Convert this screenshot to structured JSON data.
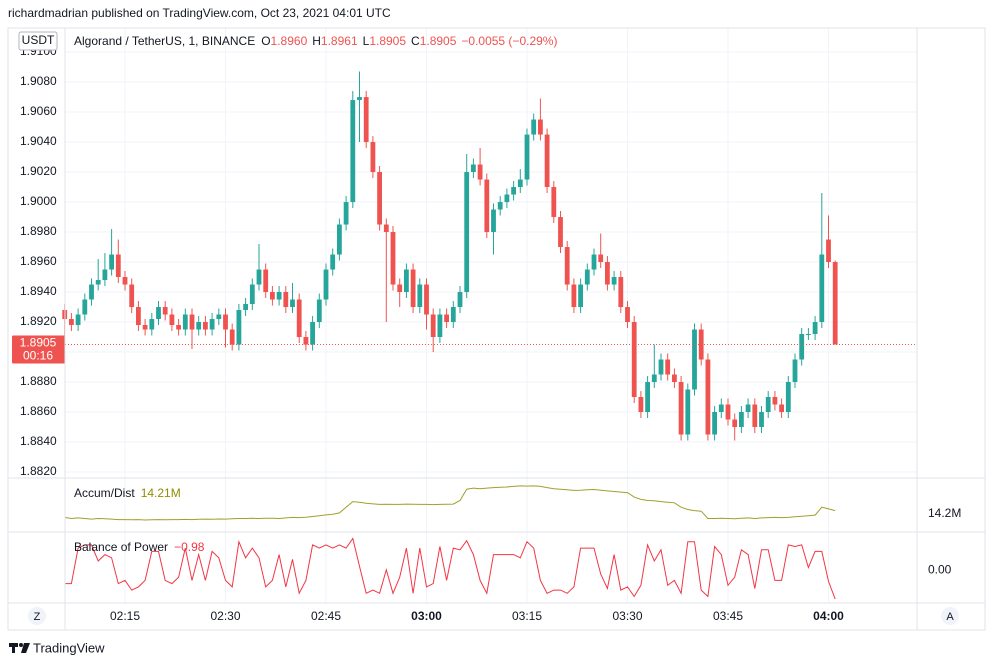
{
  "attribution": "richardmadrian published on TradingView.com, Oct 23, 2021 04:01 UTC",
  "footer": "TradingView",
  "buttons": [
    "Z",
    "A"
  ],
  "chart_data": {
    "type": "candlestick",
    "currency": "USDT",
    "header": {
      "symbol": "Algorand / TetherUS, 1, BINANCE",
      "ohlc_keys": [
        "O",
        "H",
        "L",
        "C"
      ],
      "ohlc_labels": [
        "1.8960",
        "1.8961",
        "1.8905",
        "1.8905"
      ],
      "change": "−0.0055 (−0.29%)"
    },
    "last_price_label": "1.8905",
    "countdown": "00:16",
    "up_color": "#26a69a",
    "down_color": "#ef5350",
    "grid": true,
    "x": [
      "02:06",
      "02:07",
      "02:08",
      "02:09",
      "02:10",
      "02:11",
      "02:12",
      "02:13",
      "02:14",
      "02:15",
      "02:16",
      "02:17",
      "02:18",
      "02:19",
      "02:20",
      "02:21",
      "02:22",
      "02:23",
      "02:24",
      "02:25",
      "02:26",
      "02:27",
      "02:28",
      "02:29",
      "02:30",
      "02:31",
      "02:32",
      "02:33",
      "02:34",
      "02:35",
      "02:36",
      "02:37",
      "02:38",
      "02:39",
      "02:40",
      "02:41",
      "02:42",
      "02:43",
      "02:44",
      "02:45",
      "02:46",
      "02:47",
      "02:48",
      "02:49",
      "02:50",
      "02:51",
      "02:52",
      "02:53",
      "02:54",
      "02:55",
      "02:56",
      "02:57",
      "02:58",
      "02:59",
      "03:00",
      "03:01",
      "03:02",
      "03:03",
      "03:04",
      "03:05",
      "03:06",
      "03:07",
      "03:08",
      "03:09",
      "03:10",
      "03:11",
      "03:12",
      "03:13",
      "03:14",
      "03:15",
      "03:16",
      "03:17",
      "03:18",
      "03:19",
      "03:20",
      "03:21",
      "03:22",
      "03:23",
      "03:24",
      "03:25",
      "03:26",
      "03:27",
      "03:28",
      "03:29",
      "03:30",
      "03:31",
      "03:32",
      "03:33",
      "03:34",
      "03:35",
      "03:36",
      "03:37",
      "03:38",
      "03:39",
      "03:40",
      "03:41",
      "03:42",
      "03:43",
      "03:44",
      "03:45",
      "03:46",
      "03:47",
      "03:48",
      "03:49",
      "03:50",
      "03:51",
      "03:52",
      "03:53",
      "03:54",
      "03:55",
      "03:56",
      "03:57",
      "03:58",
      "03:59",
      "04:00",
      "04:01"
    ],
    "xticks": [
      "02:15",
      "02:30",
      "02:45",
      "03:00",
      "03:15",
      "03:30",
      "03:45",
      "04:00"
    ],
    "bold_xticks": [
      "03:00",
      "04:00"
    ],
    "candles": [
      [
        1.8928,
        1.8932,
        1.89,
        1.8922
      ],
      [
        1.8922,
        1.8926,
        1.8914,
        1.8918
      ],
      [
        1.8918,
        1.8929,
        1.8914,
        1.8925
      ],
      [
        1.8925,
        1.8939,
        1.8921,
        1.8935
      ],
      [
        1.8935,
        1.8949,
        1.8931,
        1.8945
      ],
      [
        1.8945,
        1.8962,
        1.8941,
        1.8948
      ],
      [
        1.8948,
        1.8966,
        1.8944,
        1.8955
      ],
      [
        1.8955,
        1.8982,
        1.8951,
        1.8965
      ],
      [
        1.8965,
        1.8975,
        1.8946,
        1.895
      ],
      [
        1.895,
        1.8954,
        1.8941,
        1.8945
      ],
      [
        1.8945,
        1.8949,
        1.8926,
        1.893
      ],
      [
        1.893,
        1.8934,
        1.8914,
        1.8918
      ],
      [
        1.8918,
        1.8922,
        1.8911,
        1.8915
      ],
      [
        1.8915,
        1.8926,
        1.8911,
        1.8922
      ],
      [
        1.8922,
        1.8934,
        1.8918,
        1.893
      ],
      [
        1.893,
        1.8934,
        1.8921,
        1.8925
      ],
      [
        1.8925,
        1.8929,
        1.8914,
        1.8918
      ],
      [
        1.8918,
        1.8922,
        1.8911,
        1.8915
      ],
      [
        1.8915,
        1.8929,
        1.8911,
        1.8925
      ],
      [
        1.8925,
        1.8929,
        1.8902,
        1.8915
      ],
      [
        1.8915,
        1.8924,
        1.8911,
        1.892
      ],
      [
        1.892,
        1.8924,
        1.8911,
        1.8915
      ],
      [
        1.8915,
        1.8926,
        1.8911,
        1.8922
      ],
      [
        1.8922,
        1.8929,
        1.8918,
        1.8925
      ],
      [
        1.8925,
        1.8929,
        1.8903,
        1.8915
      ],
      [
        1.8915,
        1.8919,
        1.8901,
        1.8905
      ],
      [
        1.8905,
        1.8932,
        1.8901,
        1.8928
      ],
      [
        1.8928,
        1.8936,
        1.8924,
        1.8932
      ],
      [
        1.8932,
        1.8949,
        1.8928,
        1.8945
      ],
      [
        1.8945,
        1.8972,
        1.8941,
        1.8955
      ],
      [
        1.8955,
        1.8959,
        1.8936,
        1.894
      ],
      [
        1.894,
        1.8944,
        1.8931,
        1.8935
      ],
      [
        1.8935,
        1.8944,
        1.8931,
        1.894
      ],
      [
        1.894,
        1.8944,
        1.8926,
        1.893
      ],
      [
        1.893,
        1.8946,
        1.8926,
        1.8935
      ],
      [
        1.8935,
        1.8939,
        1.8906,
        1.891
      ],
      [
        1.891,
        1.8914,
        1.8901,
        1.8905
      ],
      [
        1.8905,
        1.8924,
        1.8901,
        1.892
      ],
      [
        1.892,
        1.8939,
        1.8916,
        1.8935
      ],
      [
        1.8935,
        1.8959,
        1.8931,
        1.8955
      ],
      [
        1.8955,
        1.8969,
        1.8951,
        1.8965
      ],
      [
        1.8965,
        1.8989,
        1.8961,
        1.8985
      ],
      [
        1.8985,
        1.9004,
        1.8981,
        1.9
      ],
      [
        1.9,
        1.9074,
        1.8996,
        1.9068
      ],
      [
        1.9068,
        1.9087,
        1.904,
        1.907
      ],
      [
        1.907,
        1.9074,
        1.9036,
        1.904
      ],
      [
        1.904,
        1.9044,
        1.9016,
        1.902
      ],
      [
        1.902,
        1.9024,
        1.8981,
        1.8985
      ],
      [
        1.8985,
        1.8989,
        1.892,
        1.898
      ],
      [
        1.898,
        1.8984,
        1.8941,
        1.8945
      ],
      [
        1.8945,
        1.8949,
        1.893,
        1.894
      ],
      [
        1.894,
        1.8959,
        1.8936,
        1.8955
      ],
      [
        1.8955,
        1.8959,
        1.8926,
        1.893
      ],
      [
        1.893,
        1.8949,
        1.8926,
        1.8945
      ],
      [
        1.8945,
        1.8949,
        1.8915,
        1.8925
      ],
      [
        1.8925,
        1.8929,
        1.89,
        1.891
      ],
      [
        1.891,
        1.8929,
        1.8906,
        1.8925
      ],
      [
        1.8925,
        1.8929,
        1.8916,
        1.892
      ],
      [
        1.892,
        1.8934,
        1.8916,
        1.893
      ],
      [
        1.893,
        1.8944,
        1.8926,
        1.894
      ],
      [
        1.894,
        1.9032,
        1.8936,
        1.902
      ],
      [
        1.902,
        1.9029,
        1.9016,
        1.9025
      ],
      [
        1.9025,
        1.9036,
        1.9011,
        1.9015
      ],
      [
        1.9015,
        1.9019,
        1.8976,
        1.898
      ],
      [
        1.898,
        1.8999,
        1.8965,
        1.8995
      ],
      [
        1.8995,
        1.9004,
        1.8991,
        1.9
      ],
      [
        1.9,
        1.9009,
        1.8996,
        1.9005
      ],
      [
        1.9005,
        1.9014,
        1.9001,
        1.901
      ],
      [
        1.901,
        1.9022,
        1.9006,
        1.9015
      ],
      [
        1.9015,
        1.9049,
        1.9011,
        1.9045
      ],
      [
        1.9045,
        1.9059,
        1.9041,
        1.9055
      ],
      [
        1.9055,
        1.9069,
        1.9041,
        1.9045
      ],
      [
        1.9045,
        1.9049,
        1.9006,
        1.901
      ],
      [
        1.901,
        1.9014,
        1.8986,
        1.899
      ],
      [
        1.899,
        1.8994,
        1.8966,
        1.897
      ],
      [
        1.897,
        1.8974,
        1.8941,
        1.8945
      ],
      [
        1.8945,
        1.8949,
        1.8926,
        1.893
      ],
      [
        1.893,
        1.8949,
        1.8926,
        1.8945
      ],
      [
        1.8945,
        1.8959,
        1.8941,
        1.8955
      ],
      [
        1.8955,
        1.8969,
        1.8951,
        1.8965
      ],
      [
        1.8965,
        1.8979,
        1.8956,
        1.896
      ],
      [
        1.896,
        1.8964,
        1.8941,
        1.8945
      ],
      [
        1.8945,
        1.8954,
        1.8941,
        1.895
      ],
      [
        1.895,
        1.8954,
        1.8926,
        1.893
      ],
      [
        1.893,
        1.8934,
        1.8916,
        1.892
      ],
      [
        1.892,
        1.8924,
        1.8866,
        1.887
      ],
      [
        1.887,
        1.8874,
        1.8856,
        1.886
      ],
      [
        1.886,
        1.8884,
        1.8856,
        1.888
      ],
      [
        1.888,
        1.8905,
        1.8876,
        1.8885
      ],
      [
        1.8885,
        1.8899,
        1.8881,
        1.8895
      ],
      [
        1.8895,
        1.8899,
        1.8881,
        1.8885
      ],
      [
        1.8885,
        1.8889,
        1.8876,
        1.888
      ],
      [
        1.888,
        1.8884,
        1.8841,
        1.8845
      ],
      [
        1.8845,
        1.8879,
        1.8841,
        1.8875
      ],
      [
        1.8875,
        1.8919,
        1.8871,
        1.8915
      ],
      [
        1.8915,
        1.8919,
        1.8891,
        1.8895
      ],
      [
        1.8895,
        1.8899,
        1.8841,
        1.8845
      ],
      [
        1.8845,
        1.8864,
        1.8841,
        1.886
      ],
      [
        1.886,
        1.8869,
        1.8856,
        1.8865
      ],
      [
        1.8865,
        1.8869,
        1.8851,
        1.8855
      ],
      [
        1.8855,
        1.8859,
        1.8841,
        1.885
      ],
      [
        1.885,
        1.8864,
        1.8846,
        1.886
      ],
      [
        1.886,
        1.8869,
        1.8856,
        1.8865
      ],
      [
        1.8865,
        1.8869,
        1.8846,
        1.885
      ],
      [
        1.885,
        1.8864,
        1.8846,
        1.886
      ],
      [
        1.886,
        1.8874,
        1.8856,
        1.887
      ],
      [
        1.887,
        1.8874,
        1.8861,
        1.8865
      ],
      [
        1.8865,
        1.8869,
        1.8856,
        1.886
      ],
      [
        1.886,
        1.8884,
        1.8856,
        1.888
      ],
      [
        1.888,
        1.8899,
        1.8876,
        1.8895
      ],
      [
        1.8895,
        1.8916,
        1.8891,
        1.8912
      ],
      [
        1.8912,
        1.8916,
        1.8908,
        1.8912
      ],
      [
        1.8912,
        1.8924,
        1.8908,
        1.892
      ],
      [
        1.892,
        1.9006,
        1.8916,
        1.8965
      ],
      [
        1.8975,
        1.8991,
        1.8956,
        1.896
      ],
      [
        1.896,
        1.8961,
        1.8905,
        1.8905
      ]
    ],
    "ylim": [
      1.8816,
      1.91147
    ],
    "yticks": [
      {
        "value": 1.882,
        "label": "1.8820"
      },
      {
        "value": 1.884,
        "label": "1.8840"
      },
      {
        "value": 1.886,
        "label": "1.8860"
      },
      {
        "value": 1.888,
        "label": "1.8880"
      },
      {
        "value": 1.89,
        "label": "1.8900"
      },
      {
        "value": 1.892,
        "label": "1.8920"
      },
      {
        "value": 1.894,
        "label": "1.8940"
      },
      {
        "value": 1.896,
        "label": "1.8960"
      },
      {
        "value": 1.898,
        "label": "1.8980"
      },
      {
        "value": 1.9,
        "label": "1.9000"
      },
      {
        "value": 1.902,
        "label": "1.9020"
      },
      {
        "value": 1.904,
        "label": "1.9040"
      },
      {
        "value": 1.906,
        "label": "1.9060"
      },
      {
        "value": 1.908,
        "label": "1.9080"
      },
      {
        "value": 1.91,
        "label": "1.9100"
      }
    ],
    "panes": [
      {
        "name": "Accum/Dist",
        "color": "#a0a02a",
        "label_color": "#8f8f00",
        "last_value_label": "14.21M",
        "ylim": [
          14.02,
          14.5
        ],
        "yticks": [
          {
            "value": 14.21,
            "label": "14.2M"
          }
        ],
        "values": [
          14.15,
          14.14,
          14.145,
          14.14,
          14.135,
          14.14,
          14.138,
          14.135,
          14.13,
          14.13,
          14.128,
          14.13,
          14.127,
          14.128,
          14.13,
          14.128,
          14.13,
          14.13,
          14.132,
          14.13,
          14.133,
          14.135,
          14.134,
          14.136,
          14.135,
          14.137,
          14.14,
          14.14,
          14.142,
          14.14,
          14.142,
          14.143,
          14.14,
          14.145,
          14.15,
          14.148,
          14.152,
          14.158,
          14.165,
          14.172,
          14.178,
          14.19,
          14.24,
          14.29,
          14.285,
          14.275,
          14.27,
          14.265,
          14.266,
          14.265,
          14.265,
          14.268,
          14.266,
          14.265,
          14.265,
          14.264,
          14.265,
          14.266,
          14.268,
          14.3,
          14.4,
          14.41,
          14.405,
          14.41,
          14.415,
          14.418,
          14.42,
          14.425,
          14.43,
          14.428,
          14.43,
          14.425,
          14.415,
          14.405,
          14.4,
          14.395,
          14.39,
          14.392,
          14.395,
          14.398,
          14.392,
          14.385,
          14.38,
          14.375,
          14.37,
          14.33,
          14.31,
          14.3,
          14.298,
          14.29,
          14.285,
          14.28,
          14.24,
          14.22,
          14.21,
          14.205,
          14.14,
          14.14,
          14.142,
          14.14,
          14.138,
          14.142,
          14.145,
          14.14,
          14.145,
          14.148,
          14.15,
          14.148,
          14.15,
          14.155,
          14.16,
          14.165,
          14.17,
          14.24,
          14.225,
          14.21
        ]
      },
      {
        "name": "Balance of Power",
        "color": "#f23645",
        "label_color": "#f23645",
        "last_value_label": "−0.98",
        "ylim": [
          -1.1,
          1.1
        ],
        "yticks": [
          {
            "value": 0,
            "label": "0.00"
          }
        ],
        "values": [
          -0.5,
          -0.5,
          0.6,
          0.7,
          0.7,
          0.2,
          0.4,
          0.3,
          -0.5,
          -0.4,
          -0.7,
          -0.6,
          -0.4,
          0.5,
          0.5,
          -0.4,
          -0.5,
          -0.3,
          0.6,
          -0.4,
          0.4,
          -0.4,
          0.5,
          0.3,
          -0.4,
          -0.6,
          0.8,
          0.3,
          0.6,
          0.3,
          -0.6,
          -0.4,
          0.4,
          -0.6,
          0.25,
          -0.8,
          -0.4,
          0.7,
          0.6,
          0.7,
          0.6,
          0.7,
          0.6,
          0.9,
          0.04,
          -0.8,
          -0.7,
          -0.8,
          -0.07,
          -0.8,
          -0.3,
          0.6,
          -0.8,
          0.6,
          -0.6,
          -0.5,
          0.65,
          -0.4,
          0.6,
          0.55,
          0.83,
          0.4,
          -0.4,
          -0.8,
          0.4,
          0.4,
          0.4,
          0.4,
          0.3,
          0.8,
          0.6,
          -0.4,
          -0.8,
          -0.7,
          -0.7,
          -0.8,
          -0.6,
          0.6,
          0.6,
          0.6,
          -0.2,
          -0.65,
          0.4,
          -0.7,
          -0.6,
          -0.9,
          -0.55,
          0.7,
          0.2,
          0.55,
          -0.55,
          -0.4,
          -0.8,
          0.8,
          0.8,
          -0.7,
          -0.9,
          0.65,
          0.4,
          -0.55,
          -0.3,
          0.55,
          0.4,
          -0.65,
          0.55,
          0.55,
          -0.4,
          -0.4,
          0.7,
          0.65,
          0.7,
          0,
          0.5,
          0.5,
          -0.43,
          -0.98
        ]
      }
    ]
  }
}
